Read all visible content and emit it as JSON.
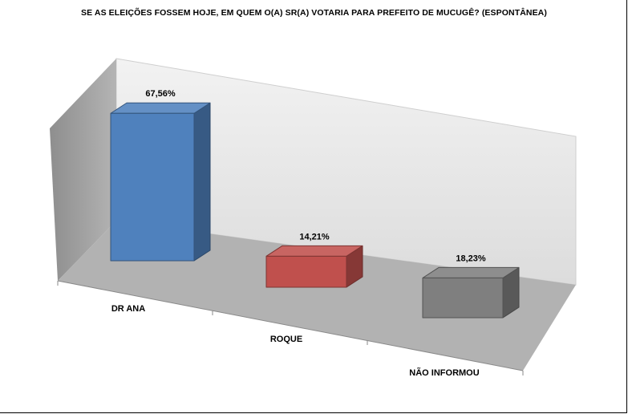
{
  "chart_data": {
    "type": "bar",
    "title": "SE AS ELEIÇÕES FOSSEM HOJE, EM QUEM O(A) SR(A) VOTARIA PARA PREFEITO DE MUCUGÊ? (ESPONTÂNEA)",
    "categories": [
      "DR ANA",
      "ROQUE",
      "NÃO INFORMOU"
    ],
    "values": [
      67.56,
      14.21,
      18.23
    ],
    "data_labels": [
      "67,56%",
      "14,21%",
      "18,23%"
    ],
    "colors": [
      "#4f81bd",
      "#c0504d",
      "#7f7f7f"
    ],
    "style": "3d",
    "grid": false,
    "legend": "none"
  }
}
